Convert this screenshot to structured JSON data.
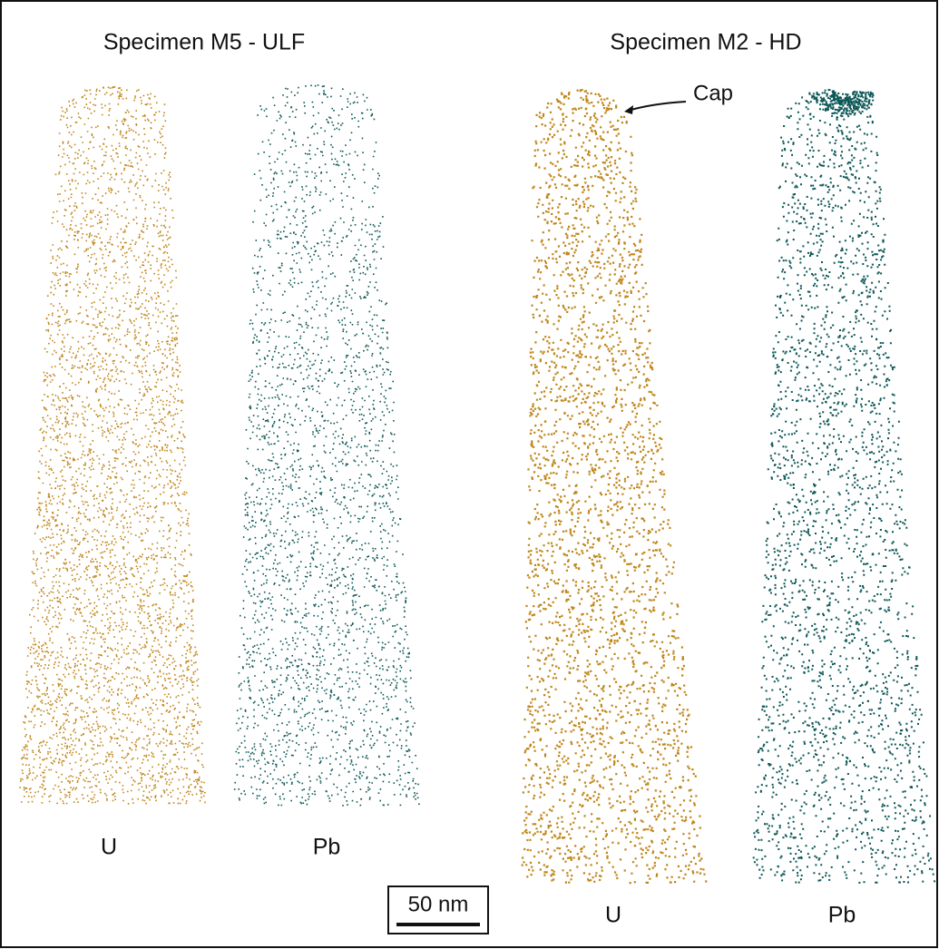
{
  "panels": [
    {
      "title": "Specimen M5 - ULF",
      "columns": [
        {
          "label": "U"
        },
        {
          "label": "Pb"
        }
      ]
    },
    {
      "title": "Specimen M2 - HD",
      "columns": [
        {
          "label": "U"
        },
        {
          "label": "Pb"
        }
      ]
    }
  ],
  "annotation": "Cap",
  "scale_bar": "50 nm"
}
